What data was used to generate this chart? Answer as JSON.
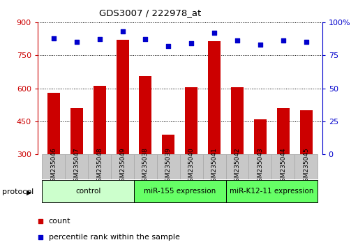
{
  "title": "GDS3007 / 222978_at",
  "samples": [
    "GSM235046",
    "GSM235047",
    "GSM235048",
    "GSM235049",
    "GSM235038",
    "GSM235039",
    "GSM235040",
    "GSM235041",
    "GSM235042",
    "GSM235043",
    "GSM235044",
    "GSM235045"
  ],
  "bar_values": [
    580,
    510,
    610,
    820,
    655,
    390,
    605,
    815,
    605,
    460,
    510,
    500
  ],
  "percentile_values": [
    88,
    85,
    87,
    93,
    87,
    82,
    84,
    92,
    86,
    83,
    86,
    85
  ],
  "ylim_left": [
    300,
    900
  ],
  "ylim_right": [
    0,
    100
  ],
  "yticks_left": [
    300,
    450,
    600,
    750,
    900
  ],
  "yticks_right": [
    0,
    25,
    50,
    75,
    100
  ],
  "bar_color": "#cc0000",
  "dot_color": "#0000cc",
  "bg_color": "#ffffff",
  "protocol_groups": [
    {
      "label": "control",
      "start": 0,
      "end": 3,
      "color": "#ccffcc"
    },
    {
      "label": "miR-155 expression",
      "start": 4,
      "end": 7,
      "color": "#66ff66"
    },
    {
      "label": "miR-K12-11 expression",
      "start": 8,
      "end": 11,
      "color": "#66ff66"
    }
  ],
  "gray_box_color": "#c8c8c8",
  "gray_box_edge": "#aaaaaa"
}
